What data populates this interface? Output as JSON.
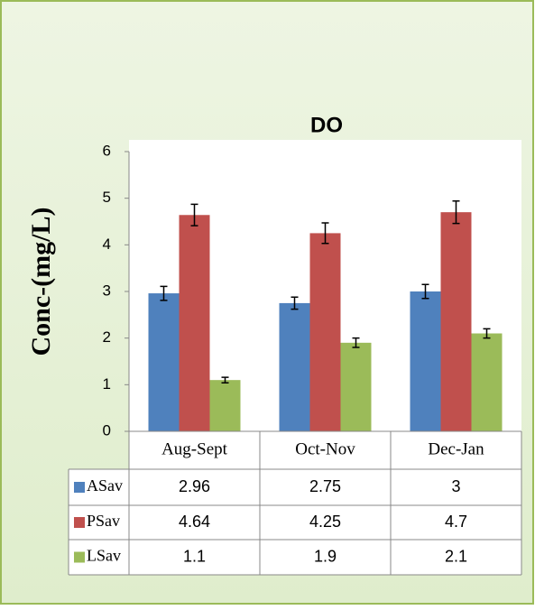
{
  "chart_data": {
    "type": "bar",
    "title": "DO",
    "y_label": "Conc-(mg/L)",
    "categories": [
      "Aug-Sept",
      "Oct-Nov",
      "Dec-Jan"
    ],
    "series": [
      {
        "name": "ASav",
        "color": "#4f81bd",
        "values": [
          2.96,
          2.75,
          3
        ],
        "errors": [
          0.15,
          0.13,
          0.15
        ]
      },
      {
        "name": "PSav",
        "color": "#c0504d",
        "values": [
          4.64,
          4.25,
          4.7
        ],
        "errors": [
          0.23,
          0.22,
          0.24
        ]
      },
      {
        "name": "LSav",
        "color": "#9bbb59",
        "values": [
          1.1,
          1.9,
          2.1
        ],
        "errors": [
          0.06,
          0.1,
          0.1
        ]
      }
    ],
    "ylim": [
      0,
      6
    ],
    "yticks": [
      0,
      1,
      2,
      3,
      4,
      5,
      6
    ],
    "data_table": true
  }
}
